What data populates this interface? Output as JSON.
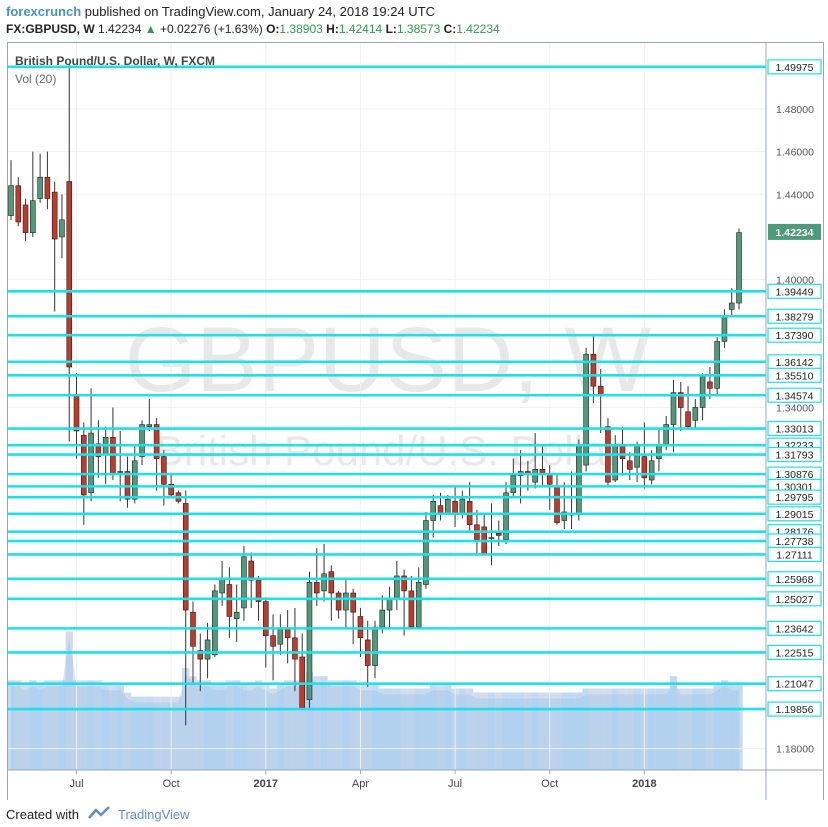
{
  "header": {
    "brand": "forexcrunch",
    "published": "published on TradingView.com, January 24, 2018 19:24 UTC",
    "symbol": "FX:GBPUSD, W",
    "last": "1.42234",
    "change": "+0.02276 (+1.63%)",
    "o_label": "O:",
    "o_value": "1.38903",
    "h_label": "H:",
    "h_value": "1.42414",
    "l_label": "L:",
    "l_value": "1.38573",
    "c_label": "C:",
    "c_value": "1.42234"
  },
  "footer": {
    "created": "Created with",
    "brand": "TradingView"
  },
  "colors": {
    "up": "#4f9a7d",
    "down": "#c0392b",
    "level": "#1fe0e6",
    "volume": "#9ec6ea",
    "watermark": "#d6d6d6"
  },
  "chart_data": {
    "type": "candlestick",
    "title": "British Pound/U.S. Dollar, W, FXCM",
    "indicator": "Vol (20)",
    "watermark_main": "GBPUSD, W",
    "watermark_sub": "British Pound/U.S. Dollar",
    "ylim": [
      1.17,
      1.51
    ],
    "y_ticks": [
      "1.48000",
      "1.46000",
      "1.44000",
      "1.40000",
      "1.34000",
      "1.18000"
    ],
    "x_ticks": [
      "Jul",
      "Oct",
      "2017",
      "Apr",
      "Jul",
      "Oct",
      "2018"
    ],
    "current_price_label": "1.42234",
    "levels": [
      1.49975,
      1.39449,
      1.38279,
      1.3739,
      1.36142,
      1.3551,
      1.34574,
      1.33013,
      1.32233,
      1.31793,
      1.30876,
      1.30301,
      1.29795,
      1.29015,
      1.28176,
      1.27738,
      1.27111,
      1.25968,
      1.25027,
      1.23642,
      1.22515,
      1.21047,
      1.19856
    ],
    "level_labels": [
      "1.49975",
      "1.39449",
      "1.38279",
      "1.37390",
      "1.36142",
      "1.35510",
      "1.34574",
      "1.33013",
      "1.32233",
      "1.31793",
      "1.30876",
      "1.30301",
      "1.29795",
      "1.29015",
      "1.28176",
      "1.27738",
      "1.27111",
      "1.25968",
      "1.25027",
      "1.23642",
      "1.22515",
      "1.21047",
      "1.19856"
    ],
    "candles": [
      [
        1.43,
        1.444,
        1.456,
        1.428
      ],
      [
        1.444,
        1.427,
        1.448,
        1.425
      ],
      [
        1.435,
        1.422,
        1.438,
        1.418
      ],
      [
        1.422,
        1.437,
        1.46,
        1.42
      ],
      [
        1.438,
        1.448,
        1.459,
        1.436
      ],
      [
        1.448,
        1.438,
        1.46,
        1.433
      ],
      [
        1.441,
        1.419,
        1.446,
        1.385
      ],
      [
        1.42,
        1.428,
        1.44,
        1.41
      ],
      [
        1.446,
        1.359,
        1.501,
        1.324
      ],
      [
        1.346,
        1.329,
        1.356,
        1.316
      ],
      [
        1.327,
        1.299,
        1.333,
        1.285
      ],
      [
        1.3,
        1.328,
        1.349,
        1.296
      ],
      [
        1.323,
        1.317,
        1.334,
        1.307
      ],
      [
        1.318,
        1.326,
        1.331,
        1.304
      ],
      [
        1.326,
        1.309,
        1.34,
        1.306
      ],
      [
        1.31,
        1.31,
        1.329,
        1.296
      ],
      [
        1.31,
        1.297,
        1.317,
        1.293
      ],
      [
        1.297,
        1.315,
        1.322,
        1.295
      ],
      [
        1.317,
        1.332,
        1.334,
        1.313
      ],
      [
        1.331,
        1.332,
        1.344,
        1.329
      ],
      [
        1.332,
        1.316,
        1.335,
        1.301
      ],
      [
        1.317,
        1.304,
        1.32,
        1.294
      ],
      [
        1.304,
        1.299,
        1.309,
        1.298
      ],
      [
        1.3,
        1.296,
        1.301,
        1.295
      ],
      [
        1.295,
        1.245,
        1.301,
        1.191
      ],
      [
        1.244,
        1.228,
        1.249,
        1.211
      ],
      [
        1.226,
        1.222,
        1.234,
        1.207
      ],
      [
        1.222,
        1.231,
        1.239,
        1.213
      ],
      [
        1.224,
        1.254,
        1.257,
        1.223
      ],
      [
        1.253,
        1.26,
        1.268,
        1.247
      ],
      [
        1.257,
        1.242,
        1.265,
        1.232
      ],
      [
        1.241,
        1.244,
        1.257,
        1.23
      ],
      [
        1.246,
        1.27,
        1.275,
        1.24
      ],
      [
        1.268,
        1.259,
        1.272,
        1.246
      ],
      [
        1.259,
        1.249,
        1.261,
        1.24
      ],
      [
        1.249,
        1.233,
        1.251,
        1.218
      ],
      [
        1.233,
        1.228,
        1.243,
        1.212
      ],
      [
        1.229,
        1.236,
        1.243,
        1.224
      ],
      [
        1.236,
        1.232,
        1.245,
        1.22
      ],
      [
        1.232,
        1.222,
        1.246,
        1.207
      ],
      [
        1.223,
        1.199,
        1.234,
        1.198
      ],
      [
        1.203,
        1.258,
        1.263,
        1.199
      ],
      [
        1.258,
        1.253,
        1.274,
        1.247
      ],
      [
        1.254,
        1.262,
        1.276,
        1.249
      ],
      [
        1.263,
        1.253,
        1.266,
        1.24
      ],
      [
        1.253,
        1.245,
        1.254,
        1.241
      ],
      [
        1.245,
        1.253,
        1.259,
        1.236
      ],
      [
        1.253,
        1.244,
        1.255,
        1.229
      ],
      [
        1.242,
        1.232,
        1.246,
        1.223
      ],
      [
        1.231,
        1.219,
        1.24,
        1.209
      ],
      [
        1.219,
        1.237,
        1.24,
        1.213
      ],
      [
        1.237,
        1.245,
        1.252,
        1.234
      ],
      [
        1.245,
        1.25,
        1.256,
        1.236
      ],
      [
        1.25,
        1.261,
        1.268,
        1.245
      ],
      [
        1.261,
        1.254,
        1.264,
        1.233
      ],
      [
        1.254,
        1.237,
        1.261,
        1.236
      ],
      [
        1.237,
        1.258,
        1.265,
        1.236
      ],
      [
        1.257,
        1.287,
        1.291,
        1.255
      ],
      [
        1.287,
        1.296,
        1.299,
        1.279
      ],
      [
        1.294,
        1.29,
        1.3,
        1.287
      ],
      [
        1.29,
        1.297,
        1.299,
        1.29
      ],
      [
        1.296,
        1.29,
        1.303,
        1.284
      ],
      [
        1.29,
        1.297,
        1.301,
        1.288
      ],
      [
        1.296,
        1.285,
        1.305,
        1.282
      ],
      [
        1.285,
        1.278,
        1.292,
        1.271
      ],
      [
        1.284,
        1.271,
        1.29,
        1.272
      ],
      [
        1.279,
        1.279,
        1.295,
        1.266
      ],
      [
        1.281,
        1.28,
        1.287,
        1.275
      ],
      [
        1.278,
        1.3,
        1.305,
        1.276
      ],
      [
        1.3,
        1.308,
        1.316,
        1.298
      ],
      [
        1.308,
        1.31,
        1.32,
        1.295
      ],
      [
        1.31,
        1.309,
        1.315,
        1.301
      ],
      [
        1.305,
        1.311,
        1.328,
        1.302
      ],
      [
        1.311,
        1.309,
        1.322,
        1.303
      ],
      [
        1.309,
        1.304,
        1.313,
        1.292
      ],
      [
        1.303,
        1.286,
        1.309,
        1.285
      ],
      [
        1.287,
        1.291,
        1.305,
        1.283
      ],
      [
        1.29,
        1.29,
        1.31,
        1.283
      ],
      [
        1.29,
        1.322,
        1.325,
        1.287
      ],
      [
        1.313,
        1.365,
        1.368,
        1.31
      ],
      [
        1.365,
        1.35,
        1.374,
        1.342
      ],
      [
        1.35,
        1.346,
        1.358,
        1.328
      ],
      [
        1.331,
        1.305,
        1.335,
        1.303
      ],
      [
        1.306,
        1.322,
        1.327,
        1.305
      ],
      [
        1.322,
        1.316,
        1.331,
        1.308
      ],
      [
        1.315,
        1.311,
        1.319,
        1.306
      ],
      [
        1.312,
        1.322,
        1.324,
        1.305
      ],
      [
        1.317,
        1.307,
        1.333,
        1.302
      ],
      [
        1.306,
        1.315,
        1.32,
        1.304
      ],
      [
        1.316,
        1.322,
        1.33,
        1.31
      ],
      [
        1.322,
        1.332,
        1.336,
        1.32
      ],
      [
        1.332,
        1.347,
        1.353,
        1.319
      ],
      [
        1.347,
        1.34,
        1.352,
        1.329
      ],
      [
        1.338,
        1.331,
        1.35,
        1.33
      ],
      [
        1.334,
        1.34,
        1.344,
        1.33
      ],
      [
        1.34,
        1.355,
        1.356,
        1.334
      ],
      [
        1.352,
        1.349,
        1.359,
        1.344
      ],
      [
        1.349,
        1.371,
        1.373,
        1.346
      ],
      [
        1.371,
        1.383,
        1.386,
        1.368
      ],
      [
        1.386,
        1.389,
        1.396,
        1.383
      ],
      [
        1.389,
        1.422,
        1.424,
        1.386
      ]
    ],
    "volume": [
      0.22,
      0.22,
      0.21,
      0.22,
      0.21,
      0.22,
      0.22,
      0.22,
      0.34,
      0.22,
      0.22,
      0.22,
      0.22,
      0.21,
      0.21,
      0.21,
      0.19,
      0.18,
      0.18,
      0.18,
      0.18,
      0.18,
      0.18,
      0.18,
      0.25,
      0.23,
      0.22,
      0.22,
      0.21,
      0.21,
      0.22,
      0.22,
      0.21,
      0.21,
      0.22,
      0.21,
      0.2,
      0.21,
      0.22,
      0.22,
      0.22,
      0.24,
      0.23,
      0.23,
      0.22,
      0.22,
      0.22,
      0.22,
      0.21,
      0.21,
      0.21,
      0.2,
      0.2,
      0.2,
      0.2,
      0.2,
      0.2,
      0.2,
      0.21,
      0.21,
      0.21,
      0.2,
      0.2,
      0.2,
      0.19,
      0.19,
      0.19,
      0.19,
      0.19,
      0.19,
      0.19,
      0.19,
      0.19,
      0.19,
      0.19,
      0.19,
      0.19,
      0.19,
      0.19,
      0.2,
      0.2,
      0.2,
      0.2,
      0.2,
      0.2,
      0.2,
      0.2,
      0.2,
      0.2,
      0.2,
      0.2,
      0.23,
      0.2,
      0.2,
      0.2,
      0.2,
      0.2,
      0.21,
      0.22,
      0.21,
      0.21
    ]
  }
}
